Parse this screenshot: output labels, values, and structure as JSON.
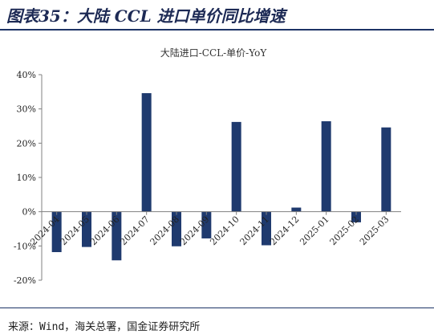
{
  "figure": {
    "title": "图表35：大陆 CCL 进口单价同比增速",
    "source": "来源：Wind，海关总署，国金证券研究所"
  },
  "colors": {
    "bar": "#1f3a6e",
    "title": "#1d2a55",
    "rule": "#1d3366",
    "axis": "#808080"
  },
  "chart_data": {
    "type": "bar",
    "title": "大陆进口-CCL-单价-YoY",
    "xlabel": "",
    "ylabel": "",
    "categories": [
      "2024-04",
      "2024-05",
      "2024-06",
      "2024-07",
      "2024-08",
      "2024-09",
      "2024-10",
      "2024-11",
      "2024-12",
      "2025-01",
      "2025-02",
      "2025-03"
    ],
    "series": [
      {
        "values": [
          -11.8,
          -10.3,
          -14.2,
          34.6,
          -10.1,
          -7.8,
          26.2,
          -9.8,
          1.2,
          26.4,
          -3.1,
          24.6
        ]
      }
    ],
    "ylim": [
      -20,
      40
    ],
    "yticks": [
      -20,
      -10,
      0,
      10,
      20,
      30,
      40
    ],
    "ytick_labels": [
      "-20%",
      "-10%",
      "0%",
      "10%",
      "20%",
      "30%",
      "40%"
    ],
    "grid": false,
    "legend": "none"
  }
}
